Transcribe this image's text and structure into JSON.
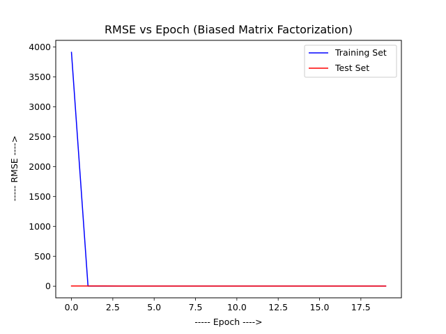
{
  "chart_data": {
    "type": "line",
    "title": "RMSE vs Epoch (Biased Matrix Factorization)",
    "xlabel": "-----  Epoch  ---->",
    "ylabel": "-----  RMSE  ---->",
    "xlim": [
      -0.95,
      19.95
    ],
    "ylim": [
      -195,
      4110
    ],
    "xticks": [
      0.0,
      2.5,
      5.0,
      7.5,
      10.0,
      12.5,
      15.0,
      17.5
    ],
    "xtick_labels": [
      "0.0",
      "2.5",
      "5.0",
      "7.5",
      "10.0",
      "12.5",
      "15.0",
      "17.5"
    ],
    "yticks": [
      0,
      500,
      1000,
      1500,
      2000,
      2500,
      3000,
      3500,
      4000
    ],
    "ytick_labels": [
      "0",
      "500",
      "1000",
      "1500",
      "2000",
      "2500",
      "3000",
      "3500",
      "4000"
    ],
    "grid": false,
    "legend_position": "top-right",
    "x": [
      0,
      1,
      2,
      3,
      4,
      5,
      6,
      7,
      8,
      9,
      10,
      11,
      12,
      13,
      14,
      15,
      16,
      17,
      18,
      19
    ],
    "series": [
      {
        "name": "Training Set",
        "color": "#0000ff",
        "values": [
          3910,
          2,
          1.5,
          1.3,
          1.2,
          1.1,
          1.05,
          1.0,
          1.0,
          0.98,
          0.97,
          0.96,
          0.95,
          0.95,
          0.94,
          0.94,
          0.93,
          0.93,
          0.93,
          0.92
        ]
      },
      {
        "name": "Test Set",
        "color": "#ff0000",
        "values": [
          3.0,
          2.5,
          2.2,
          2.0,
          1.9,
          1.8,
          1.75,
          1.7,
          1.7,
          1.65,
          1.65,
          1.6,
          1.6,
          1.6,
          1.6,
          1.6,
          1.6,
          1.6,
          1.6,
          1.6
        ]
      }
    ]
  }
}
